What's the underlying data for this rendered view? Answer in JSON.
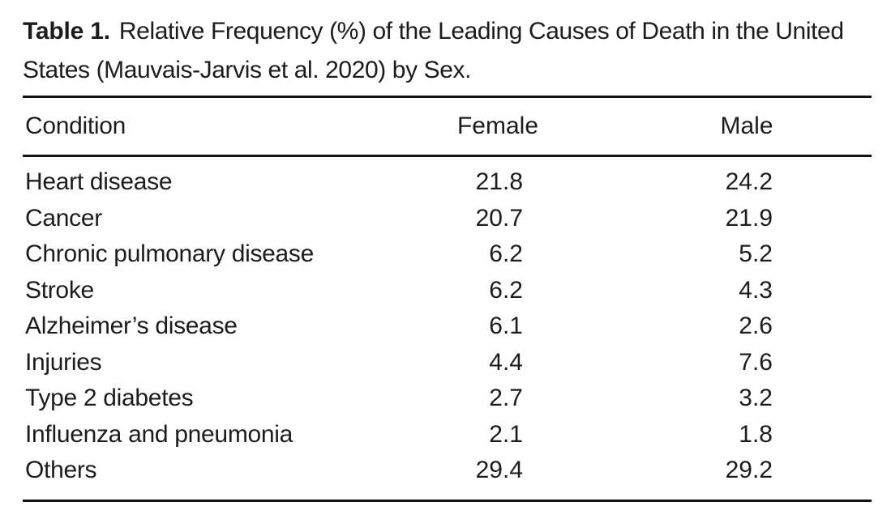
{
  "caption": {
    "label": "Table 1.",
    "text": "Relative Frequency (%) of the Leading Causes of Death in the United States (Mauvais-Jarvis et al. 2020) by Sex."
  },
  "table": {
    "columns": [
      "Condition",
      "Female",
      "Male"
    ],
    "rows": [
      {
        "condition": "Heart disease",
        "female": "21.8",
        "male": "24.2"
      },
      {
        "condition": "Cancer",
        "female": "20.7",
        "male": "21.9"
      },
      {
        "condition": "Chronic pulmonary disease",
        "female": "6.2",
        "male": "5.2"
      },
      {
        "condition": "Stroke",
        "female": "6.2",
        "male": "4.3"
      },
      {
        "condition": "Alzheimer’s disease",
        "female": "6.1",
        "male": "2.6"
      },
      {
        "condition": "Injuries",
        "female": "4.4",
        "male": "7.6"
      },
      {
        "condition": "Type 2 diabetes",
        "female": "2.7",
        "male": "3.2"
      },
      {
        "condition": "Influenza and pneumonia",
        "female": "2.1",
        "male": "1.8"
      },
      {
        "condition": "Others",
        "female": "29.4",
        "male": "29.2"
      }
    ]
  },
  "colors": {
    "text": "#1e1b1c",
    "rule": "#131313",
    "background": "#ffffff"
  }
}
